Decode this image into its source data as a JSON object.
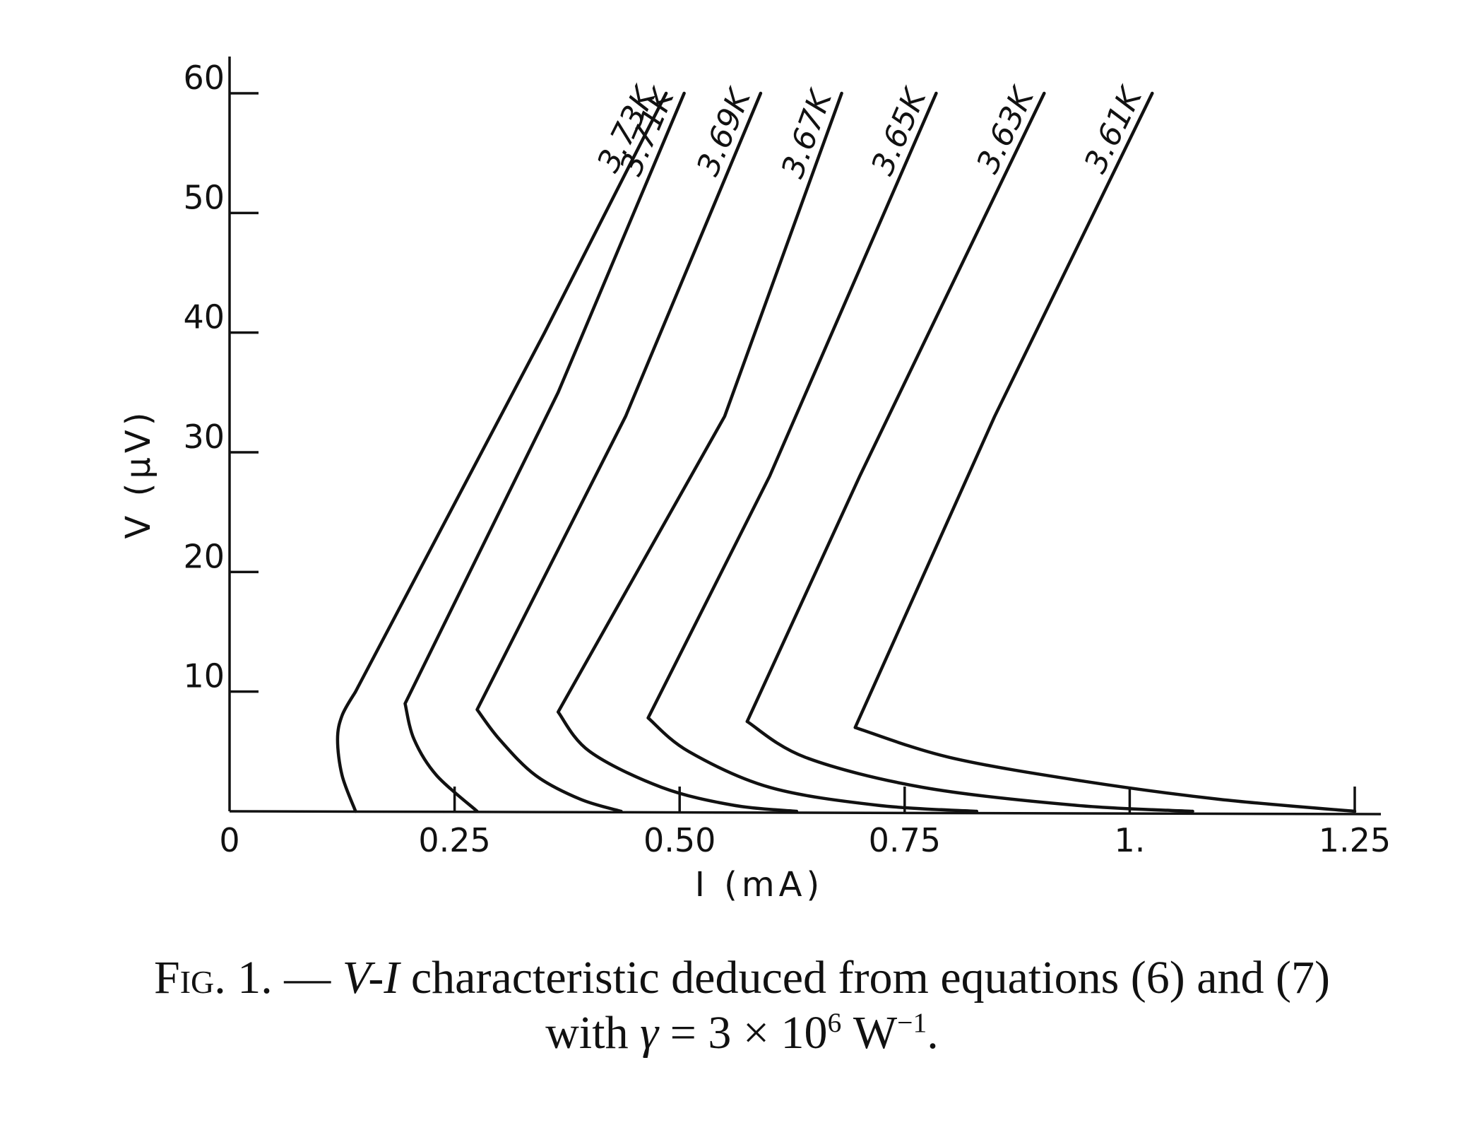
{
  "chart_data": {
    "type": "line",
    "xlabel": "I (mA)",
    "ylabel": "V (μV)",
    "xlim": [
      0,
      1.3
    ],
    "ylim": [
      0,
      62
    ],
    "x_ticks": [
      0,
      0.25,
      0.5,
      0.75,
      1.0,
      1.25
    ],
    "x_tick_labels": [
      "0",
      "0.25",
      "0.50",
      "0.75",
      "1.",
      "1.25"
    ],
    "y_ticks": [
      10,
      20,
      30,
      40,
      50,
      60
    ],
    "y_tick_labels": [
      "10",
      "20",
      "30",
      "40",
      "50",
      "60"
    ],
    "grid": false,
    "series": [
      {
        "name": "3.73K",
        "points": [
          [
            0.14,
            0
          ],
          [
            0.125,
            3
          ],
          [
            0.12,
            6
          ],
          [
            0.125,
            8
          ],
          [
            0.14,
            10
          ],
          [
            0.35,
            40
          ],
          [
            0.485,
            60
          ]
        ]
      },
      {
        "name": "3.71K",
        "points": [
          [
            0.275,
            0
          ],
          [
            0.23,
            3
          ],
          [
            0.205,
            6
          ],
          [
            0.195,
            9
          ],
          [
            0.365,
            35
          ],
          [
            0.505,
            60
          ]
        ]
      },
      {
        "name": "3.69K",
        "points": [
          [
            0.435,
            0
          ],
          [
            0.39,
            1
          ],
          [
            0.34,
            3
          ],
          [
            0.3,
            6
          ],
          [
            0.275,
            8.5
          ],
          [
            0.44,
            33
          ],
          [
            0.59,
            60
          ]
        ]
      },
      {
        "name": "3.67K",
        "points": [
          [
            0.63,
            0
          ],
          [
            0.56,
            0.5
          ],
          [
            0.48,
            2
          ],
          [
            0.4,
            5
          ],
          [
            0.365,
            8.3
          ],
          [
            0.55,
            33
          ],
          [
            0.68,
            60
          ]
        ]
      },
      {
        "name": "3.65K",
        "points": [
          [
            0.83,
            0
          ],
          [
            0.72,
            0.5
          ],
          [
            0.6,
            2
          ],
          [
            0.51,
            5
          ],
          [
            0.465,
            7.8
          ],
          [
            0.6,
            28
          ],
          [
            0.785,
            60
          ]
        ]
      },
      {
        "name": "3.63K",
        "points": [
          [
            1.07,
            0
          ],
          [
            0.94,
            0.5
          ],
          [
            0.77,
            2
          ],
          [
            0.64,
            4.5
          ],
          [
            0.575,
            7.5
          ],
          [
            0.7,
            28
          ],
          [
            0.905,
            60
          ]
        ]
      },
      {
        "name": "3.61K",
        "points": [
          [
            1.25,
            0
          ],
          [
            1.1,
            1
          ],
          [
            0.95,
            2.5
          ],
          [
            0.8,
            4.5
          ],
          [
            0.695,
            7
          ],
          [
            0.85,
            33
          ],
          [
            1.025,
            60
          ]
        ]
      }
    ]
  },
  "caption": {
    "prefix": "Fig. 1. — ",
    "vi": "V-I",
    "line1_rest": " characteristic deduced from equations (6) and (7)",
    "line2_start": "with ",
    "gamma": "γ",
    "line2_mid": " = 3 × 10",
    "exp1": "6",
    "line2_unit": " W",
    "exp2": "−1",
    "line2_end": "."
  }
}
